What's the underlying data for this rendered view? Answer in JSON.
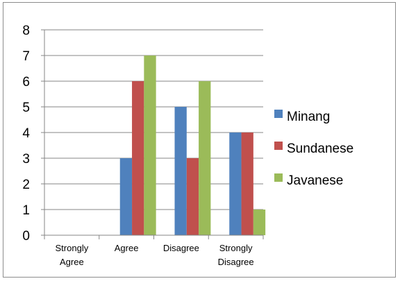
{
  "chart_data": {
    "type": "bar",
    "title": "",
    "xlabel": "",
    "ylabel": "",
    "categories": [
      [
        "Strongly",
        "Agree"
      ],
      [
        "Agree"
      ],
      [
        "Disagree"
      ],
      [
        "Strongly",
        "Disagree"
      ]
    ],
    "series": [
      {
        "name": "Minang",
        "values": [
          0,
          3,
          5,
          4
        ],
        "color": "#4f81bd"
      },
      {
        "name": "Sundanese",
        "values": [
          0,
          6,
          3,
          4
        ],
        "color": "#c0504d"
      },
      {
        "name": "Javanese",
        "values": [
          0,
          7,
          6,
          1
        ],
        "color": "#9bbb59"
      }
    ],
    "ylim": [
      0,
      8
    ],
    "yticks": [
      0,
      1,
      2,
      3,
      4,
      5,
      6,
      7,
      8
    ],
    "grid": true,
    "legend_position": "right"
  }
}
